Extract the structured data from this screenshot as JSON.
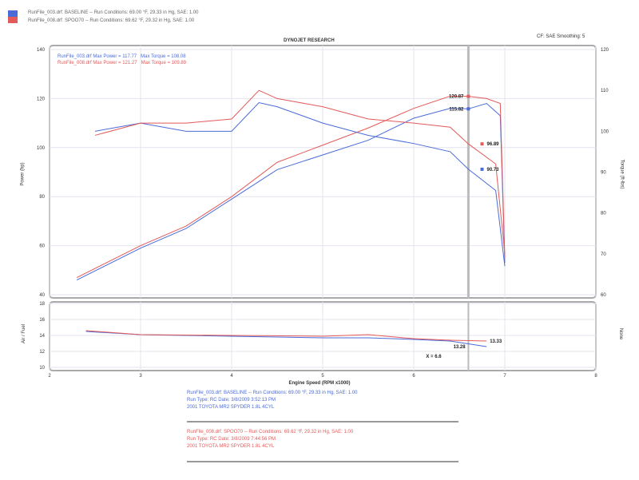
{
  "header": {
    "legend": [
      {
        "text": "RunFile_003.drf: BASELINE -- Run Conditions: 69.00 °F, 29.33 in Hg, SAE: 1.00",
        "color": "#4a6bd8"
      },
      {
        "text": "RunFile_008.drf: SPOO70 -- Run Conditions: 69.62 °F, 29.32 in Hg, SAE: 1.00",
        "color": "#e35a5a"
      }
    ],
    "brand": "DYNOJET RESEARCH",
    "settings": "CF: SAE  Smoothing: 5"
  },
  "chart_data": [
    {
      "type": "line",
      "title": "",
      "xlabel": "Engine Speed (RPM x1000)",
      "ylabel": "Power (hp)",
      "y2label": "Torque (ft-lbs)",
      "xlim": [
        2,
        8
      ],
      "ylim": [
        40,
        140
      ],
      "y2lim": [
        60,
        120
      ],
      "xticks": [
        "2",
        "3",
        "4",
        "5",
        "6",
        "7",
        "8"
      ],
      "yticks": [
        "140",
        "120",
        "100",
        "80",
        "60",
        "40"
      ],
      "y2ticks": [
        "120",
        "110",
        "100",
        "90",
        "80",
        "70",
        "60"
      ],
      "grid": true,
      "cursor_x": 6.6,
      "legend_items": [
        {
          "file": "RunFile_003.drf",
          "power": "Max Power = 117.77",
          "torque": "Max Torque = 108.08",
          "color": "#4a6bd8"
        },
        {
          "file": "RunFile_008.drf",
          "power": "Max Power = 121.27",
          "torque": "Max Torque = 109.89",
          "color": "#e35a5a"
        }
      ],
      "series": [
        {
          "file": "RunFile_003.drf",
          "measure": "power",
          "axis": "left",
          "color": "#4a6bd8",
          "x": [
            2.3,
            3,
            3.5,
            4,
            4.5,
            5,
            5.5,
            6,
            6.4,
            6.6,
            6.8,
            6.95,
            7
          ],
          "y": [
            46,
            59,
            67,
            79,
            91,
            97,
            103,
            112,
            116,
            115.8,
            118,
            113,
            53
          ]
        },
        {
          "file": "RunFile_008.drf",
          "measure": "power",
          "axis": "left",
          "color": "#e35a5a",
          "x": [
            2.3,
            3,
            3.5,
            4,
            4.5,
            5,
            5.5,
            6,
            6.4,
            6.6,
            6.8,
            6.95,
            7
          ],
          "y": [
            47,
            60,
            68,
            80,
            94,
            101,
            108,
            116,
            121,
            120.9,
            120,
            118,
            55
          ]
        },
        {
          "file": "RunFile_003.drf",
          "measure": "torque",
          "axis": "right",
          "color": "#4a6bd8",
          "x": [
            2.5,
            3,
            3.5,
            4,
            4.3,
            4.5,
            5,
            5.5,
            6,
            6.4,
            6.6,
            6.9,
            7
          ],
          "y": [
            100,
            102,
            100,
            100,
            107,
            106,
            102,
            99,
            97,
            95,
            90.7,
            85.5,
            67
          ]
        },
        {
          "file": "RunFile_008.drf",
          "measure": "torque",
          "axis": "right",
          "color": "#e35a5a",
          "x": [
            2.5,
            3,
            3.5,
            4,
            4.3,
            4.5,
            5,
            5.5,
            6,
            6.4,
            6.6,
            6.9,
            7
          ],
          "y": [
            99,
            102,
            102,
            103,
            110,
            108,
            106,
            103,
            102,
            101,
            96.9,
            92,
            70
          ]
        }
      ],
      "annotations": [
        {
          "text": "120.87",
          "x": 6.6,
          "y": 120.9,
          "axis": "left",
          "color": "#e35a5a"
        },
        {
          "text": "115.82",
          "x": 6.6,
          "y": 115.8,
          "axis": "left",
          "color": "#4a6bd8"
        },
        {
          "text": "96.89",
          "x": 6.75,
          "y": 96.9,
          "axis": "right",
          "color": "#e35a5a"
        },
        {
          "text": "90.73",
          "x": 6.75,
          "y": 90.7,
          "axis": "right",
          "color": "#4a6bd8"
        }
      ]
    },
    {
      "type": "line",
      "ylabel": "Air / Fuel",
      "y2label": "None",
      "xlim": [
        2,
        8
      ],
      "ylim": [
        10,
        18
      ],
      "yticks": [
        "18",
        "16",
        "14",
        "12",
        "10"
      ],
      "series": [
        {
          "file": "RunFile_003.drf",
          "color": "#4a6bd8",
          "x": [
            2.4,
            3,
            4,
            5,
            5.5,
            6,
            6.4,
            6.8
          ],
          "y": [
            14.5,
            14.1,
            13.9,
            13.7,
            13.7,
            13.5,
            13.3,
            12.6
          ]
        },
        {
          "file": "RunFile_008.drf",
          "color": "#e35a5a",
          "x": [
            2.4,
            3,
            4,
            5,
            5.5,
            6,
            6.4,
            6.8
          ],
          "y": [
            14.6,
            14.1,
            14,
            13.9,
            14.1,
            13.6,
            13.4,
            13.3
          ]
        }
      ],
      "annotations": [
        {
          "text": "13.33",
          "x": 6.8,
          "y": 13.3,
          "color": "#e35a5a"
        },
        {
          "text": "13.28",
          "x": 6.4,
          "y": 12.6,
          "color": "#4a6bd8"
        },
        {
          "text": "X = 6.6",
          "x": 6.1,
          "y": 11.4,
          "color": "#333"
        }
      ]
    }
  ],
  "footer": {
    "blue": [
      "RunFile_003.drf: BASELINE -- Run Conditions: 69.00 °F, 29.33 in Hg, SAE: 1.00",
      "Run Type: RC  Date: 3/8/2009 3:52:13 PM",
      "2001 TOYOTA MR2 SPYDER 1.8L 4CYL"
    ],
    "red": [
      "RunFile_008.drf: SPOO70 -- Run Conditions: 69.62 °F, 29.32 in Hg, SAE: 1.00",
      "Run Type: RC  Date: 3/8/2009 7:44:56 PM",
      "2001 TOYOTA MR2 SPYDER 1.8L 4CYL"
    ]
  }
}
